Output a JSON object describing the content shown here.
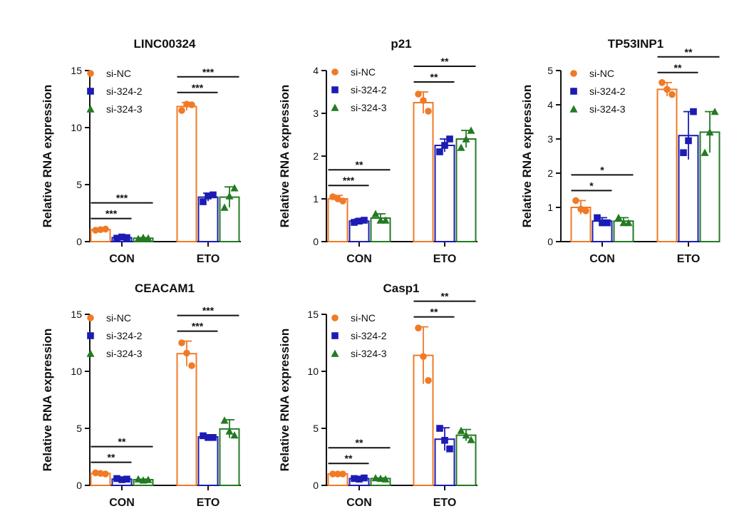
{
  "chart_data": [
    {
      "type": "bar",
      "title": "LINC00324",
      "ylabel": "Relative RNA expression",
      "ylim": [
        0,
        15
      ],
      "yticks": [
        0,
        5,
        10,
        15
      ],
      "categories": [
        "CON",
        "ETO"
      ],
      "legend": "top-right",
      "series": [
        {
          "name": "si-NC",
          "values": [
            1.05,
            11.85
          ],
          "error": [
            0.1,
            0.35
          ],
          "points": [
            [
              1.0,
              1.1,
              1.05
            ],
            [
              11.5,
              12.0,
              12.05
            ]
          ]
        },
        {
          "name": "si-324-2",
          "values": [
            0.35,
            3.9
          ],
          "error": [
            0.05,
            0.35
          ],
          "points": [
            [
              0.3,
              0.35,
              0.4
            ],
            [
              3.5,
              4.1,
              4.0
            ]
          ]
        },
        {
          "name": "si-324-3",
          "values": [
            0.3,
            3.9
          ],
          "error": [
            0.05,
            0.9
          ],
          "points": [
            [
              0.25,
              0.3,
              0.35
            ],
            [
              3.0,
              4.7,
              4.0
            ]
          ]
        }
      ],
      "significance": [
        {
          "category": "CON",
          "from": "si-NC",
          "to": "si-324-2",
          "label": "***"
        },
        {
          "category": "CON",
          "from": "si-NC",
          "to": "si-324-3",
          "label": "***"
        },
        {
          "category": "ETO",
          "from": "si-NC",
          "to": "si-324-2",
          "label": "***"
        },
        {
          "category": "ETO",
          "from": "si-NC",
          "to": "si-324-3",
          "label": "***"
        }
      ]
    },
    {
      "type": "bar",
      "title": "p21",
      "ylabel": "Relative RNA expression",
      "ylim": [
        0,
        4
      ],
      "yticks": [
        0,
        1,
        2,
        3,
        4
      ],
      "categories": [
        "CON",
        "ETO"
      ],
      "legend": "top-right",
      "series": [
        {
          "name": "si-NC",
          "values": [
            1.0,
            3.25
          ],
          "error": [
            0.08,
            0.25
          ],
          "points": [
            [
              1.05,
              0.95,
              1.0
            ],
            [
              3.45,
              3.05,
              3.3
            ]
          ]
        },
        {
          "name": "si-324-2",
          "values": [
            0.48,
            2.25
          ],
          "error": [
            0.05,
            0.15
          ],
          "points": [
            [
              0.45,
              0.5,
              0.48
            ],
            [
              2.1,
              2.4,
              2.25
            ]
          ]
        },
        {
          "name": "si-324-3",
          "values": [
            0.55,
            2.4
          ],
          "error": [
            0.1,
            0.2
          ],
          "points": [
            [
              0.65,
              0.5,
              0.5
            ],
            [
              2.2,
              2.6,
              2.4
            ]
          ]
        }
      ],
      "significance": [
        {
          "category": "CON",
          "from": "si-NC",
          "to": "si-324-2",
          "label": "***"
        },
        {
          "category": "CON",
          "from": "si-NC",
          "to": "si-324-3",
          "label": "**"
        },
        {
          "category": "ETO",
          "from": "si-NC",
          "to": "si-324-2",
          "label": "**"
        },
        {
          "category": "ETO",
          "from": "si-NC",
          "to": "si-324-3",
          "label": "**"
        }
      ]
    },
    {
      "type": "bar",
      "title": "TP53INP1",
      "ylabel": "Relative RNA expression",
      "ylim": [
        0,
        5
      ],
      "yticks": [
        0,
        1,
        2,
        3,
        4,
        5
      ],
      "categories": [
        "CON",
        "ETO"
      ],
      "legend": "top-right",
      "series": [
        {
          "name": "si-NC",
          "values": [
            1.0,
            4.45
          ],
          "error": [
            0.2,
            0.2
          ],
          "points": [
            [
              1.2,
              0.9,
              0.95
            ],
            [
              4.65,
              4.3,
              4.45
            ]
          ]
        },
        {
          "name": "si-324-2",
          "values": [
            0.6,
            3.1
          ],
          "error": [
            0.1,
            0.7
          ],
          "points": [
            [
              0.7,
              0.55,
              0.55
            ],
            [
              2.6,
              3.8,
              2.95
            ]
          ]
        },
        {
          "name": "si-324-3",
          "values": [
            0.6,
            3.2
          ],
          "error": [
            0.1,
            0.6
          ],
          "points": [
            [
              0.7,
              0.55,
              0.55
            ],
            [
              2.6,
              3.8,
              3.2
            ]
          ]
        }
      ],
      "significance": [
        {
          "category": "CON",
          "from": "si-NC",
          "to": "si-324-2",
          "label": "*"
        },
        {
          "category": "CON",
          "from": "si-NC",
          "to": "si-324-3",
          "label": "*"
        },
        {
          "category": "ETO",
          "from": "si-NC",
          "to": "si-324-2",
          "label": "**"
        },
        {
          "category": "ETO",
          "from": "si-NC",
          "to": "si-324-3",
          "label": "**"
        }
      ]
    },
    {
      "type": "bar",
      "title": "CEACAM1",
      "ylabel": "Relative RNA expression",
      "ylim": [
        0,
        15
      ],
      "yticks": [
        0,
        5,
        10,
        15
      ],
      "categories": [
        "CON",
        "ETO"
      ],
      "legend": "top-right",
      "series": [
        {
          "name": "si-NC",
          "values": [
            1.05,
            11.55
          ],
          "error": [
            0.1,
            1.1
          ],
          "points": [
            [
              1.1,
              1.0,
              1.05
            ],
            [
              12.5,
              10.5,
              11.6
            ]
          ]
        },
        {
          "name": "si-324-2",
          "values": [
            0.55,
            4.25
          ],
          "error": [
            0.05,
            0.15
          ],
          "points": [
            [
              0.6,
              0.55,
              0.5
            ],
            [
              4.35,
              4.2,
              4.2
            ]
          ]
        },
        {
          "name": "si-324-3",
          "values": [
            0.5,
            4.95
          ],
          "error": [
            0.05,
            0.8
          ],
          "points": [
            [
              0.55,
              0.5,
              0.45
            ],
            [
              5.7,
              4.4,
              4.75
            ]
          ]
        }
      ],
      "significance": [
        {
          "category": "CON",
          "from": "si-NC",
          "to": "si-324-2",
          "label": "**"
        },
        {
          "category": "CON",
          "from": "si-NC",
          "to": "si-324-3",
          "label": "**"
        },
        {
          "category": "ETO",
          "from": "si-NC",
          "to": "si-324-2",
          "label": "***"
        },
        {
          "category": "ETO",
          "from": "si-NC",
          "to": "si-324-3",
          "label": "***"
        }
      ]
    },
    {
      "type": "bar",
      "title": "Casp1",
      "ylabel": "Relative RNA expression",
      "ylim": [
        0,
        15
      ],
      "yticks": [
        0,
        5,
        10,
        15
      ],
      "categories": [
        "CON",
        "ETO"
      ],
      "legend": "top-right",
      "series": [
        {
          "name": "si-NC",
          "values": [
            1.0,
            11.4
          ],
          "error": [
            0.05,
            2.5
          ],
          "points": [
            [
              1.0,
              1.0,
              1.0
            ],
            [
              13.8,
              9.2,
              11.3
            ]
          ]
        },
        {
          "name": "si-324-2",
          "values": [
            0.6,
            4.05
          ],
          "error": [
            0.05,
            1.0
          ],
          "points": [
            [
              0.6,
              0.65,
              0.55
            ],
            [
              5.0,
              3.2,
              3.95
            ]
          ]
        },
        {
          "name": "si-324-3",
          "values": [
            0.6,
            4.4
          ],
          "error": [
            0.05,
            0.5
          ],
          "points": [
            [
              0.65,
              0.55,
              0.6
            ],
            [
              4.8,
              4.0,
              4.4
            ]
          ]
        }
      ],
      "significance": [
        {
          "category": "CON",
          "from": "si-NC",
          "to": "si-324-2",
          "label": "**"
        },
        {
          "category": "CON",
          "from": "si-NC",
          "to": "si-324-3",
          "label": "**"
        },
        {
          "category": "ETO",
          "from": "si-NC",
          "to": "si-324-2",
          "label": "**"
        },
        {
          "category": "ETO",
          "from": "si-NC",
          "to": "si-324-3",
          "label": "**"
        }
      ]
    }
  ],
  "colors": {
    "si-NC": "#f07a26",
    "si-324-2": "#1c1cb4",
    "si-324-3": "#237a23"
  },
  "markers": {
    "si-NC": "circle",
    "si-324-2": "square",
    "si-324-3": "triangle"
  }
}
